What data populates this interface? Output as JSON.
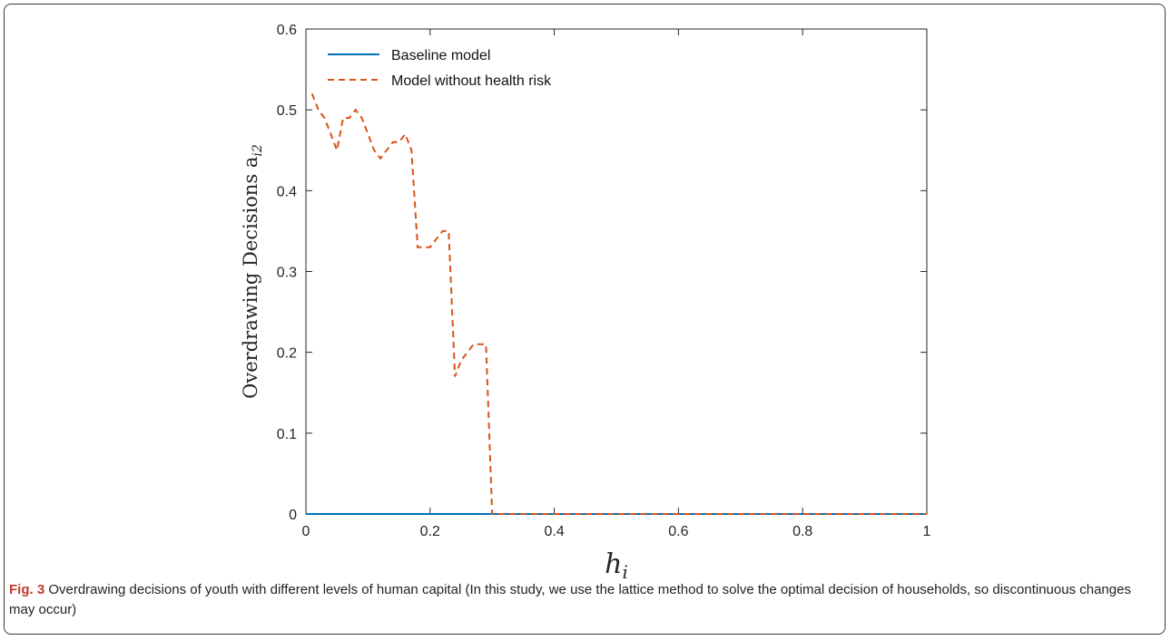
{
  "caption": {
    "label": "Fig. 3",
    "text": " Overdrawing decisions of youth with different levels of human capital (In this study, we use the lattice method to solve the optimal decision of households, so discontinuous changes may occur)"
  },
  "chart_data": {
    "type": "line",
    "title": "",
    "xlabel": "h",
    "xlabel_sub": "i",
    "ylabel": "Overdrawing Decisions a",
    "ylabel_sub": "i2",
    "xlim": [
      0,
      1
    ],
    "ylim": [
      0,
      0.6
    ],
    "xticks": [
      0,
      0.2,
      0.4,
      0.6,
      0.8,
      1
    ],
    "xtick_labels": [
      "0",
      "0.2",
      "0.4",
      "0.6",
      "0.8",
      "1"
    ],
    "yticks": [
      0,
      0.1,
      0.2,
      0.3,
      0.4,
      0.5,
      0.6
    ],
    "ytick_labels": [
      "0",
      "0.1",
      "0.2",
      "0.3",
      "0.4",
      "0.5",
      "0.6"
    ],
    "grid": false,
    "legend_position": "top-left",
    "series": [
      {
        "name": "Baseline model",
        "style": "solid",
        "color": "#0072BD",
        "x": [
          0,
          1
        ],
        "y": [
          0,
          0
        ]
      },
      {
        "name": "Model without health risk",
        "style": "dashed",
        "color": "#D95319",
        "x": [
          0.01,
          0.02,
          0.03,
          0.04,
          0.05,
          0.06,
          0.07,
          0.08,
          0.09,
          0.1,
          0.11,
          0.12,
          0.13,
          0.14,
          0.15,
          0.16,
          0.17,
          0.18,
          0.19,
          0.2,
          0.21,
          0.22,
          0.23,
          0.24,
          0.25,
          0.26,
          0.27,
          0.28,
          0.29,
          0.3,
          0.31,
          0.4,
          0.5,
          0.6,
          0.7,
          0.8,
          0.9,
          1.0
        ],
        "y": [
          0.52,
          0.5,
          0.49,
          0.47,
          0.45,
          0.49,
          0.49,
          0.5,
          0.49,
          0.47,
          0.45,
          0.44,
          0.45,
          0.46,
          0.46,
          0.47,
          0.45,
          0.33,
          0.33,
          0.33,
          0.34,
          0.35,
          0.35,
          0.17,
          0.19,
          0.2,
          0.21,
          0.21,
          0.21,
          0.0,
          0.0,
          0.0,
          0.0,
          0.0,
          0.0,
          0.0,
          0.0,
          0.0
        ]
      }
    ]
  }
}
